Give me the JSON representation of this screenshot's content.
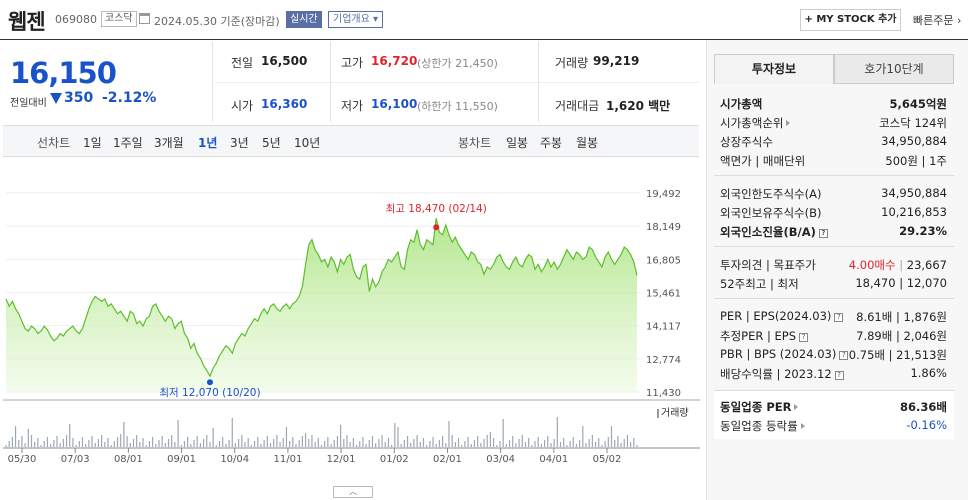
{
  "header": {
    "name": "웹젠",
    "code": "069080",
    "market": "코스닥",
    "date": "2024.05.30",
    "basis": "기준(장마감)",
    "live": "실시간",
    "company_info": "기업개요 ▾",
    "mystock": "+ MY STOCK 추가",
    "quick_order": "빠른주문 ›"
  },
  "price": {
    "current": "16,150",
    "change_label": "전일대비",
    "change": "350",
    "change_pct": "-2.12%",
    "direction": "down"
  },
  "quote": {
    "prev_label": "전일",
    "prev": "16,500",
    "high_label": "고가",
    "high": "16,720",
    "upper": "(상한가 21,450)",
    "volume_label": "거래량",
    "volume": "99,219",
    "open_label": "시가",
    "open": "16,360",
    "low_label": "저가",
    "low": "16,100",
    "lower": "(하한가 11,550)",
    "amount_label": "거래대금",
    "amount": "1,620 백만"
  },
  "periods": {
    "line_chart": "선차트",
    "items": [
      "1일",
      "1주일",
      "3개월",
      "1년",
      "3년",
      "5년",
      "10년"
    ],
    "active": "1년",
    "candle_chart": "봉차트",
    "candle_items": [
      "일봉",
      "주봉",
      "월봉"
    ]
  },
  "chart_data": {
    "type": "area",
    "x_ticks": [
      "05/30",
      "07/03",
      "08/01",
      "09/01",
      "10/04",
      "11/01",
      "12/01",
      "01/02",
      "02/01",
      "03/04",
      "04/01",
      "05/02"
    ],
    "y_ticks": [
      "19,492",
      "18,149",
      "16,805",
      "15,461",
      "14,117",
      "12,774",
      "11,430"
    ],
    "ylim": [
      11430,
      19492
    ],
    "high_label": "최고 18,470 (02/14)",
    "low_label": "최저 12,070 (10/20)",
    "volume_legend": "거래량",
    "series": [
      {
        "values": [
          15200,
          14900,
          15100,
          14800,
          14600,
          14300,
          14000,
          13900,
          14100,
          14000,
          13800,
          13900,
          14100,
          13950,
          13700,
          13500,
          13600,
          13800,
          13700,
          13900,
          14000,
          14100,
          13900,
          13800,
          14000,
          14400,
          14800,
          15100,
          15300,
          15200,
          15100,
          15200,
          14900,
          15000,
          14800,
          14600,
          14700,
          14500,
          14300,
          14700,
          14600,
          14200,
          14300,
          14100,
          14400,
          14500,
          14900,
          15000,
          14700,
          14500,
          14300,
          14500,
          14400,
          14000,
          14200,
          14300,
          13800,
          13600,
          13200,
          13400,
          13000,
          12800,
          12500,
          12300,
          12070,
          12400,
          12600,
          12900,
          13100,
          13300,
          13200,
          13000,
          13400,
          13600,
          13800,
          13700,
          14000,
          14200,
          14400,
          14300,
          14600,
          14800,
          14600,
          14900,
          15000,
          14800,
          14700,
          14900,
          15000,
          14800,
          15000,
          15100,
          15300,
          15700,
          16600,
          17400,
          17600,
          17200,
          17000,
          16700,
          16800,
          16500,
          16900,
          16700,
          16300,
          16800,
          16600,
          16900,
          17000,
          16400,
          16100,
          16000,
          16500,
          16600,
          15500,
          16000,
          15700,
          15900,
          16300,
          16500,
          16800,
          16700,
          16900,
          17100,
          16500,
          16400,
          17200,
          17600,
          17500,
          18000,
          17400,
          17200,
          17600,
          17500,
          17400,
          18470,
          17900,
          17800,
          18200,
          17800,
          17500,
          17700,
          17400,
          17200,
          17000,
          16800,
          17100,
          17000,
          16700,
          16600,
          16200,
          16500,
          16400,
          16600,
          16900,
          17000,
          16700,
          16500,
          16400,
          16700,
          16900,
          16600,
          16500,
          16800,
          17000,
          16900,
          16400,
          16600,
          16300,
          16500,
          16800,
          16500,
          16700,
          16400,
          16600,
          16900,
          17200,
          17000,
          16800,
          17100,
          17000,
          16800,
          16900,
          17300,
          17200,
          16900,
          16700,
          16500,
          16900,
          17100,
          16800,
          16600,
          16800,
          17000,
          17300,
          17200,
          17000,
          16700,
          16150
        ]
      }
    ]
  },
  "right_panel": {
    "tab_active": "투자정보",
    "tab_other": "호가10단계",
    "rows1": [
      {
        "label": "시가총액",
        "value": "5,645억원",
        "bold": true
      },
      {
        "label": "시가총액순위",
        "value": "코스닥 124위",
        "arrow": true
      },
      {
        "label": "상장주식수",
        "value": "34,950,884"
      },
      {
        "label": "액면가 | 매매단위",
        "value": "500원 | 1주"
      }
    ],
    "rows2": [
      {
        "label": "외국인한도주식수(A)",
        "value": "34,950,884"
      },
      {
        "label": "외국인보유주식수(B)",
        "value": "10,216,853"
      },
      {
        "label": "외국인소진율(B/A)",
        "value": "29.23%",
        "bold": true,
        "help": true
      }
    ],
    "opinion_label": "투자의견 | 목표주가",
    "opinion_buy": "4.00매수",
    "opinion_target": "23,667",
    "week52_label": "52주최고 | 최저",
    "week52_value": "18,470 | 12,070",
    "per_label": "PER | EPS(2024.03)",
    "per_value": "8.61배 | 1,876원",
    "est_per_label": "추정PER | EPS",
    "est_per_value": "7.89배 | 2,046원",
    "pbr_label": "PBR | BPS (2024.03)",
    "pbr_value": "0.75배 | 21,513원",
    "div_label": "배당수익률 | 2023.12",
    "div_value": "1.86%",
    "industry_per_label": "동일업종 PER",
    "industry_per_value": "86.36배",
    "industry_chg_label": "동일업종 등락률",
    "industry_chg_value": "-0.16%"
  }
}
